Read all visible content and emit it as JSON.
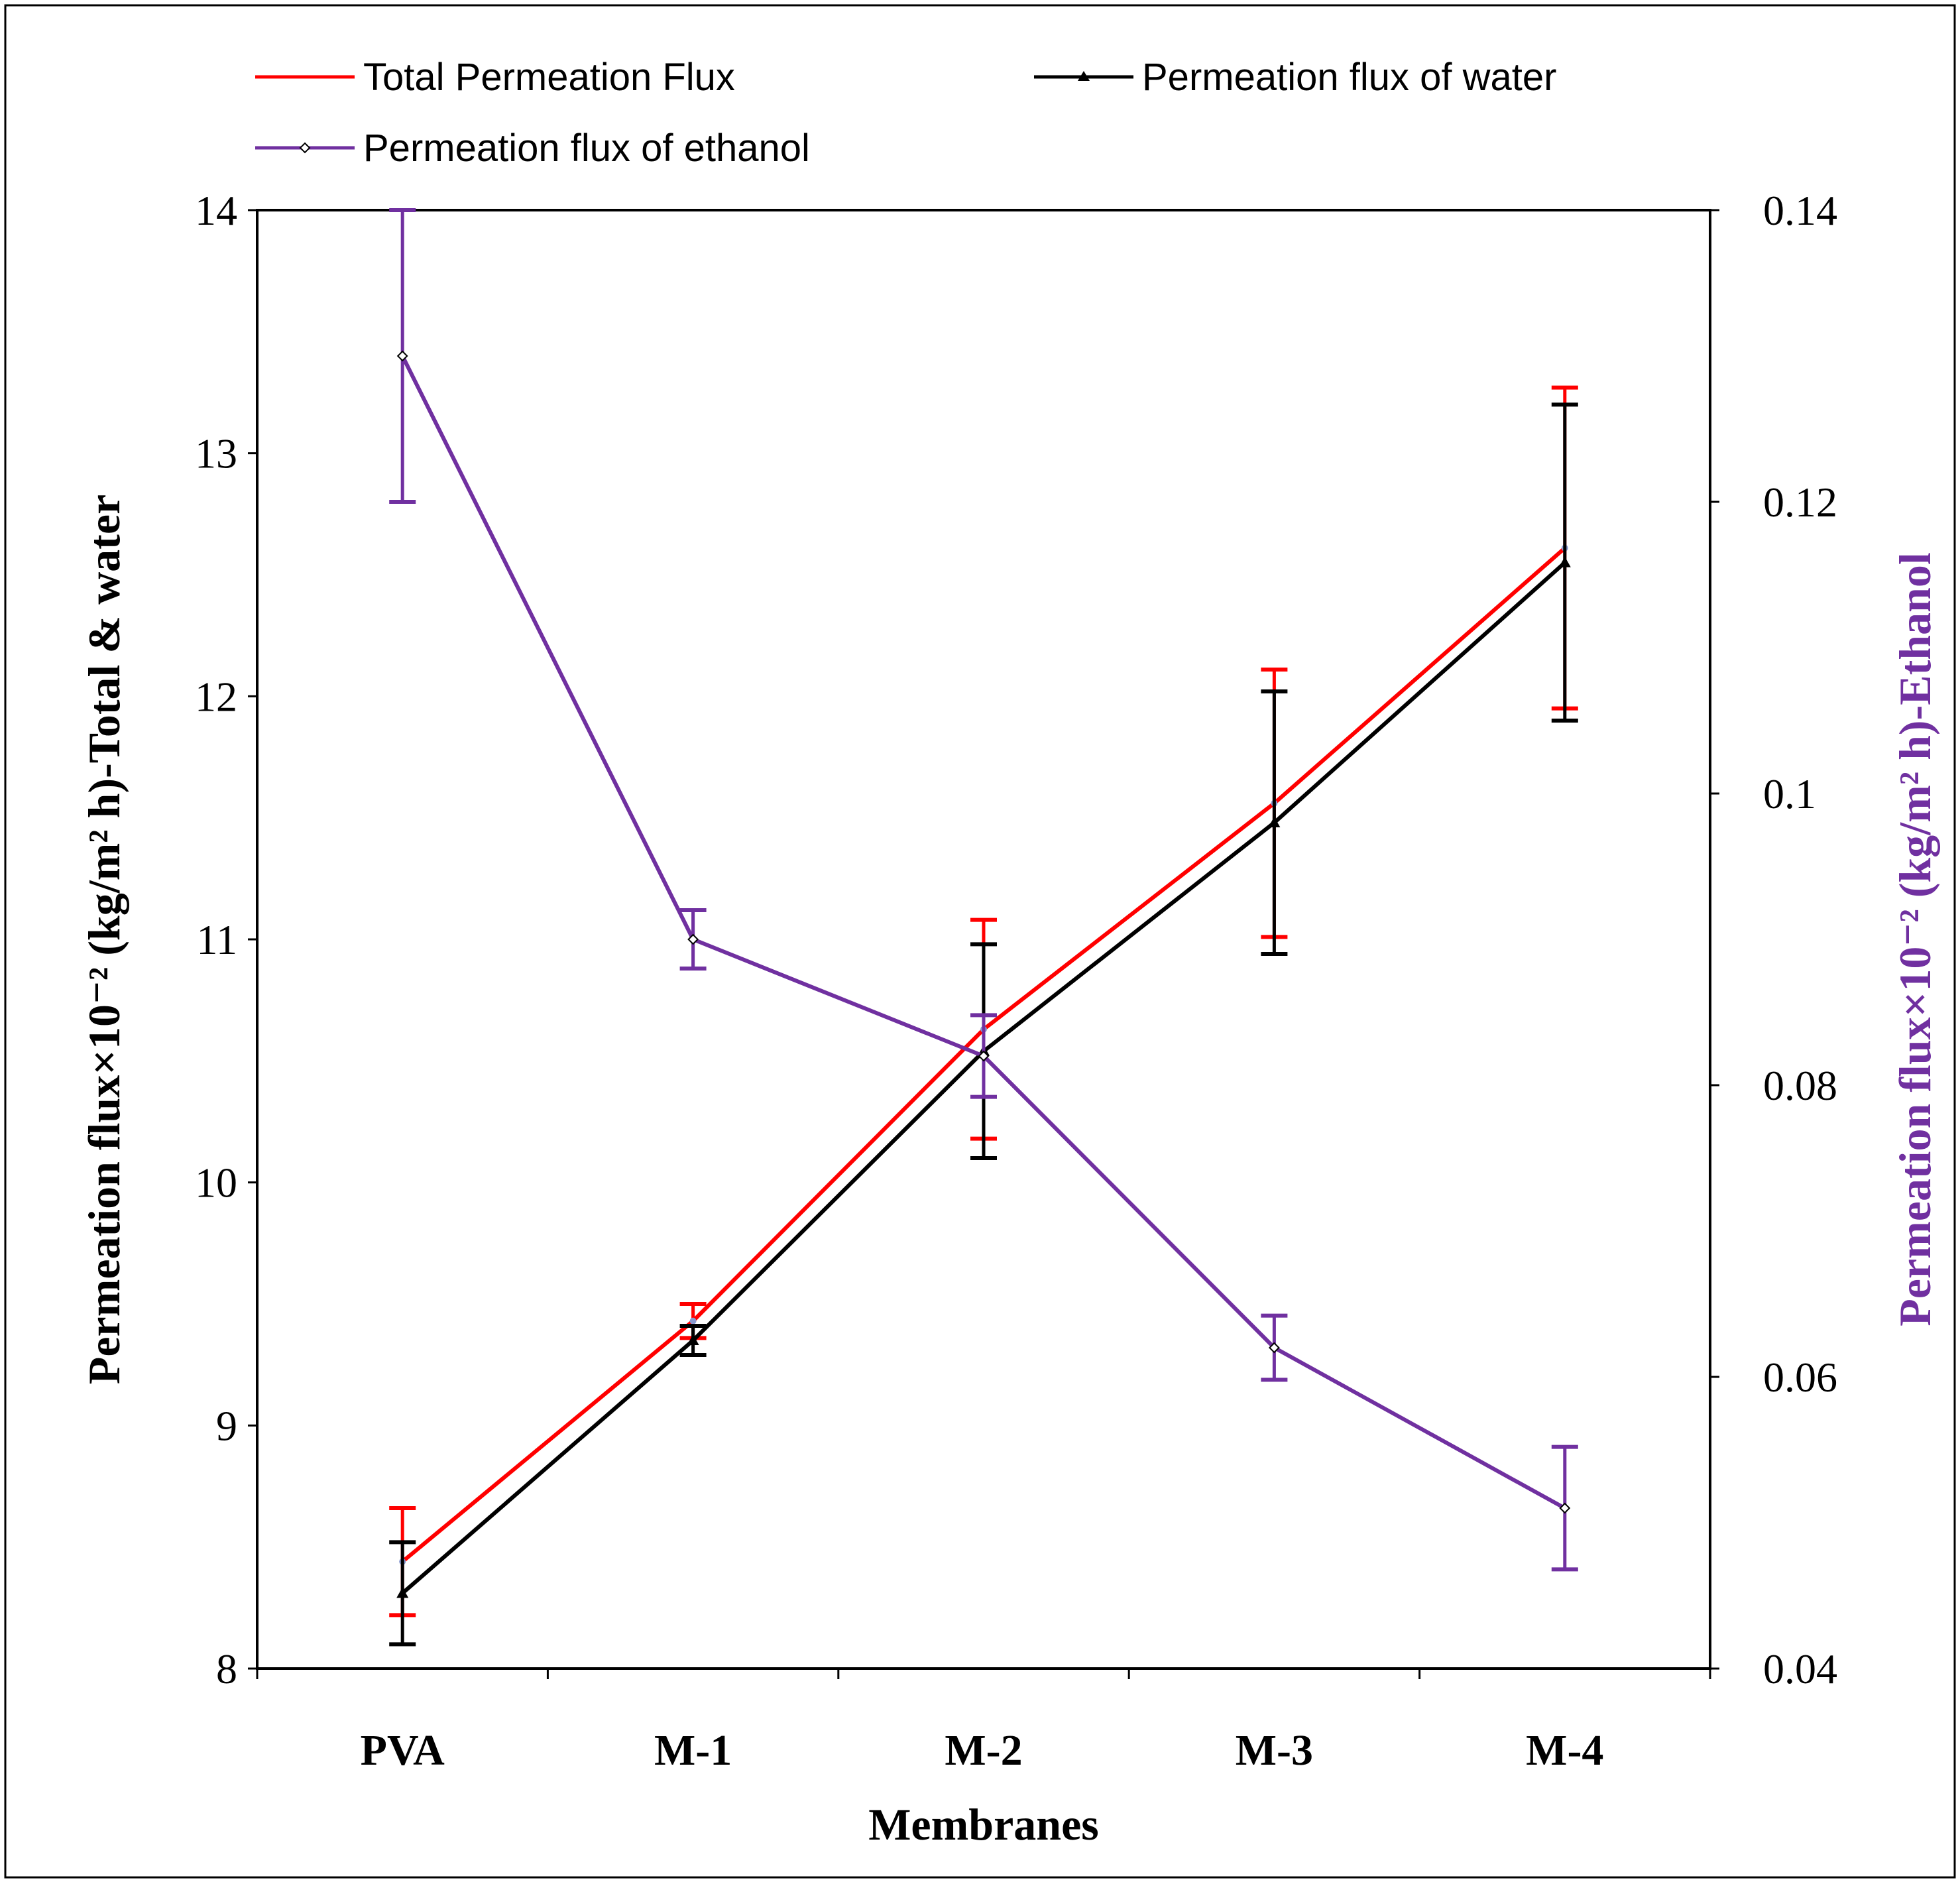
{
  "chart_data": {
    "type": "line",
    "xlabel": "Membranes",
    "ylabel_left": "Permeation flux×10⁻² (kg/m² h)-Total & water",
    "ylabel_right": "Permeation flux×10⁻² (kg/m² h)-Ethanol",
    "categories": [
      "PVA",
      "M-1",
      "M-2",
      "M-3",
      "M-4"
    ],
    "ylim_left": [
      8,
      14
    ],
    "ylim_right": [
      0.04,
      0.14
    ],
    "yticks_left": [
      "8",
      "9",
      "10",
      "11",
      "12",
      "13",
      "14"
    ],
    "yticks_right": [
      "0.04",
      "0.06",
      "0.08",
      "0.1",
      "0.12",
      "0.14"
    ],
    "grid": false,
    "legend_position": "top",
    "series": [
      {
        "name": "Total Permeation Flux",
        "axis": "left",
        "color": "#ff0000",
        "marker": "dot",
        "values": [
          8.44,
          9.43,
          10.63,
          11.56,
          12.61
        ],
        "errors": [
          0.22,
          0.07,
          0.45,
          0.55,
          0.66
        ]
      },
      {
        "name": "Permeation flux of water",
        "axis": "left",
        "color": "#000000",
        "marker": "triangle",
        "values": [
          8.31,
          9.35,
          10.54,
          11.48,
          12.55
        ],
        "errors": [
          0.21,
          0.06,
          0.44,
          0.54,
          0.65
        ]
      },
      {
        "name": "Permeation flux of ethanol",
        "axis": "right",
        "color": "#7030a0",
        "marker": "diamond",
        "values": [
          0.13,
          0.09,
          0.082,
          0.062,
          0.051
        ],
        "errors": [
          0.01,
          0.002,
          0.0028,
          0.0022,
          0.0042
        ]
      }
    ]
  }
}
